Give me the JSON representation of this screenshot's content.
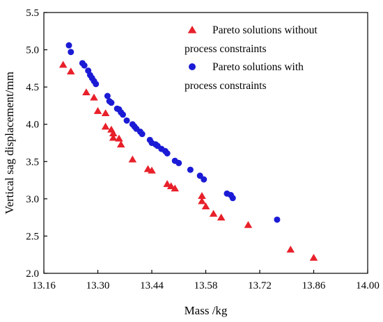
{
  "chart_data": {
    "type": "scatter",
    "xlabel": "Mass /kg",
    "ylabel": "Vertical sag displacement/mm",
    "xlim": [
      13.16,
      14.0
    ],
    "ylim": [
      2.0,
      5.5
    ],
    "xticks": [
      "13.16",
      "13.30",
      "13.44",
      "13.58",
      "13.72",
      "13.86",
      "14.00"
    ],
    "yticks": [
      "2.0",
      "2.5",
      "3.0",
      "3.5",
      "4.0",
      "4.5",
      "5.0",
      "5.5"
    ],
    "grid": false,
    "legend_position": "top-right",
    "series": [
      {
        "name_lines": [
          "Pareto solutions without",
          "process constraints"
        ],
        "marker": "triangle",
        "color": "#e8202a",
        "points": [
          [
            13.21,
            4.8
          ],
          [
            13.23,
            4.71
          ],
          [
            13.27,
            4.43
          ],
          [
            13.29,
            4.36
          ],
          [
            13.3,
            4.18
          ],
          [
            13.32,
            4.15
          ],
          [
            13.32,
            3.97
          ],
          [
            13.335,
            3.93
          ],
          [
            13.34,
            3.88
          ],
          [
            13.34,
            3.82
          ],
          [
            13.355,
            3.81
          ],
          [
            13.36,
            3.73
          ],
          [
            13.39,
            3.53
          ],
          [
            13.43,
            3.4
          ],
          [
            13.44,
            3.38
          ],
          [
            13.48,
            3.2
          ],
          [
            13.49,
            3.17
          ],
          [
            13.5,
            3.14
          ],
          [
            13.57,
            3.04
          ],
          [
            13.57,
            2.97
          ],
          [
            13.58,
            2.9
          ],
          [
            13.6,
            2.8
          ],
          [
            13.62,
            2.75
          ],
          [
            13.69,
            2.65
          ],
          [
            13.8,
            2.32
          ],
          [
            13.86,
            2.21
          ]
        ]
      },
      {
        "name_lines": [
          "Pareto solutions with",
          "process constraints"
        ],
        "marker": "circle",
        "color": "#1b1bd6",
        "points": [
          [
            13.225,
            5.06
          ],
          [
            13.23,
            4.97
          ],
          [
            13.26,
            4.82
          ],
          [
            13.265,
            4.79
          ],
          [
            13.275,
            4.72
          ],
          [
            13.28,
            4.66
          ],
          [
            13.285,
            4.62
          ],
          [
            13.29,
            4.58
          ],
          [
            13.295,
            4.54
          ],
          [
            13.325,
            4.38
          ],
          [
            13.33,
            4.31
          ],
          [
            13.335,
            4.29
          ],
          [
            13.35,
            4.21
          ],
          [
            13.355,
            4.2
          ],
          [
            13.36,
            4.16
          ],
          [
            13.365,
            4.13
          ],
          [
            13.375,
            4.05
          ],
          [
            13.39,
            4.0
          ],
          [
            13.395,
            3.97
          ],
          [
            13.4,
            3.94
          ],
          [
            13.41,
            3.9
          ],
          [
            13.415,
            3.87
          ],
          [
            13.435,
            3.79
          ],
          [
            13.44,
            3.75
          ],
          [
            13.45,
            3.73
          ],
          [
            13.455,
            3.71
          ],
          [
            13.465,
            3.67
          ],
          [
            13.475,
            3.64
          ],
          [
            13.48,
            3.61
          ],
          [
            13.5,
            3.51
          ],
          [
            13.51,
            3.48
          ],
          [
            13.54,
            3.39
          ],
          [
            13.565,
            3.31
          ],
          [
            13.575,
            3.26
          ],
          [
            13.635,
            3.07
          ],
          [
            13.645,
            3.05
          ],
          [
            13.65,
            3.01
          ],
          [
            13.765,
            2.72
          ]
        ]
      }
    ]
  }
}
